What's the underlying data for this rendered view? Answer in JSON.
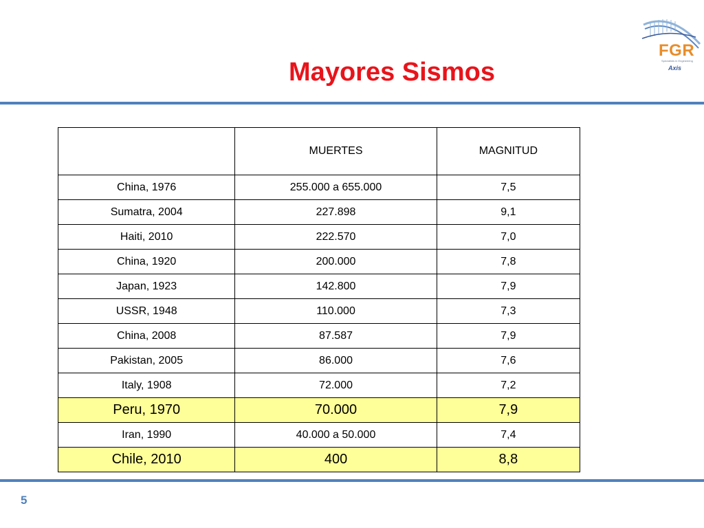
{
  "slide": {
    "title": "Mayores Sismos",
    "page_number": "5"
  },
  "logo": {
    "name": "FGR",
    "tagline": "Specialists in Engineering",
    "sub_brand": "Axis",
    "icon": "bridge-logo-icon",
    "colors": {
      "brand_orange": "#e88d2a",
      "brand_blue": "#3a5a9c"
    }
  },
  "colors": {
    "title": "#e8141b",
    "rule": "#4f81bd",
    "highlight": "#ffff99"
  },
  "table": {
    "headers": [
      "",
      "MUERTES",
      "MAGNITUD"
    ],
    "rows": [
      {
        "event": "China, 1976",
        "deaths": "255.000 a 655.000",
        "magnitude": "7,5",
        "highlight": false
      },
      {
        "event": "Sumatra, 2004",
        "deaths": "227.898",
        "magnitude": "9,1",
        "highlight": false
      },
      {
        "event": "Haiti, 2010",
        "deaths": "222.570",
        "magnitude": "7,0",
        "highlight": false
      },
      {
        "event": "China, 1920",
        "deaths": "200.000",
        "magnitude": "7,8",
        "highlight": false
      },
      {
        "event": "Japan, 1923",
        "deaths": "142.800",
        "magnitude": "7,9",
        "highlight": false
      },
      {
        "event": "USSR, 1948",
        "deaths": "110.000",
        "magnitude": "7,3",
        "highlight": false
      },
      {
        "event": "China, 2008",
        "deaths": "87.587",
        "magnitude": "7,9",
        "highlight": false
      },
      {
        "event": "Pakistan, 2005",
        "deaths": "86.000",
        "magnitude": "7,6",
        "highlight": false
      },
      {
        "event": "Italy, 1908",
        "deaths": "72.000",
        "magnitude": "7,2",
        "highlight": false
      },
      {
        "event": "Peru, 1970",
        "deaths": "70.000",
        "magnitude": "7,9",
        "highlight": true
      },
      {
        "event": "Iran, 1990",
        "deaths": "40.000 a 50.000",
        "magnitude": "7,4",
        "highlight": false
      },
      {
        "event": "Chile, 2010",
        "deaths": "400",
        "magnitude": "8,8",
        "highlight": true
      }
    ]
  }
}
